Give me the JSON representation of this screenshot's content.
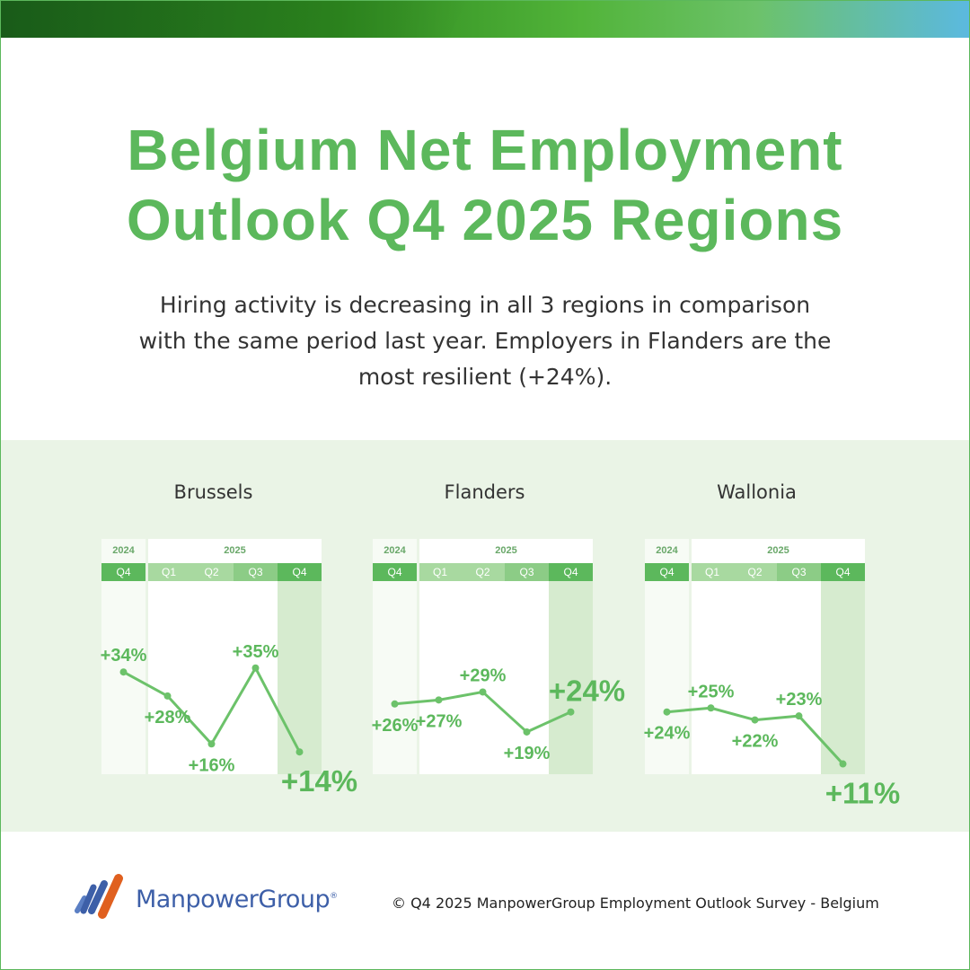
{
  "title_lines": [
    "Belgium Net Employment",
    "Outlook Q4 2025 Regions"
  ],
  "subtitle": "Hiring activity is decreasing in all 3 regions in comparison with the same period last year. Employers in Flanders are the most resilient (+24%).",
  "colors": {
    "accent": "#5cb85c",
    "line": "#6cc26a",
    "band": "#eaf4e6",
    "highlight_column": "#d6ebcf"
  },
  "chart_data": [
    {
      "type": "line",
      "title": "Brussels",
      "year_labels": [
        "2024",
        "2025"
      ],
      "categories": [
        "Q4",
        "Q1",
        "Q2",
        "Q3",
        "Q4"
      ],
      "values": [
        34,
        28,
        16,
        35,
        14
      ],
      "labels": [
        "+34%",
        "+28%",
        "+16%",
        "+35%",
        "+14%"
      ],
      "highlight": "last quarter"
    },
    {
      "type": "line",
      "title": "Flanders",
      "year_labels": [
        "2024",
        "2025"
      ],
      "categories": [
        "Q4",
        "Q1",
        "Q2",
        "Q3",
        "Q4"
      ],
      "values": [
        26,
        27,
        29,
        19,
        24
      ],
      "labels": [
        "+26%",
        "+27%",
        "+29%",
        "+19%",
        "+24%"
      ],
      "highlight": "last quarter"
    },
    {
      "type": "line",
      "title": "Wallonia",
      "year_labels": [
        "2024",
        "2025"
      ],
      "categories": [
        "Q4",
        "Q1",
        "Q2",
        "Q3",
        "Q4"
      ],
      "values": [
        24,
        25,
        22,
        23,
        11
      ],
      "labels": [
        "+24%",
        "+25%",
        "+22%",
        "+23%",
        "+11%"
      ],
      "highlight": "last quarter"
    }
  ],
  "footer": {
    "logo_text": "ManpowerGroup",
    "logo_reg": "®",
    "copyright": "© Q4 2025 ManpowerGroup Employment Outlook Survey - Belgium"
  }
}
